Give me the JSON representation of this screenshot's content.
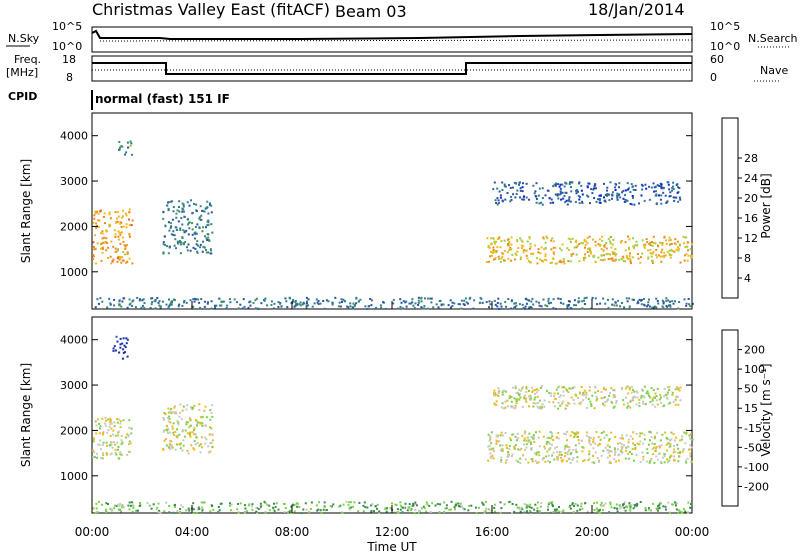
{
  "header": {
    "title": "Christmas Valley East (fitACF)",
    "beam": "Beam 03",
    "date": "18/Jan/2014"
  },
  "params": {
    "nsky_label": "N.Sky",
    "nsearch_label": "N.Search",
    "freq_label_1": "Freq.",
    "freq_label_2": "[MHz]",
    "nave_label": "Nave",
    "cpid_label": "CPID",
    "cpid_value": "normal (fast) 151 IF",
    "noise_ticks": [
      "10^5",
      "10^0"
    ],
    "freq_ticks": [
      "18",
      "8"
    ],
    "nave_ticks": [
      "60",
      "0"
    ]
  },
  "axes": {
    "ylabel": "Slant Range [km]",
    "xlabel": "Time UT",
    "y_ticks": [
      "1000",
      "2000",
      "3000",
      "4000"
    ],
    "x_ticks": [
      "00:00",
      "04:00",
      "08:00",
      "12:00",
      "16:00",
      "20:00",
      "00:00"
    ]
  },
  "power_colorbar": {
    "label": "Power [dB]",
    "ticks": [
      "4",
      "8",
      "12",
      "16",
      "20",
      "24",
      "28"
    ],
    "colors": [
      "#0a1fe6",
      "#2a4fa6",
      "#2f7a8f",
      "#3f8f68",
      "#9ad044",
      "#f2b81f",
      "#f08a18",
      "#ef5a14",
      "#e81e10"
    ]
  },
  "velocity_colorbar": {
    "label": "Velocity [m s⁻¹]",
    "ticks": [
      "200",
      "100",
      "50",
      "15",
      "-15",
      "-50",
      "-100",
      "-200"
    ],
    "colors": [
      "#1a2ea8",
      "#2e5fa8",
      "#3a8a4f",
      "#7bd14a",
      "#c8c8c0",
      "#f2b81f",
      "#f08a18",
      "#ef4a12",
      "#e01010"
    ]
  },
  "chart_data": [
    {
      "type": "heatmap",
      "title": "Power",
      "xlabel": "Time UT",
      "ylabel": "Slant Range [km]",
      "xlim": [
        0,
        24
      ],
      "ylim": [
        180,
        4500
      ],
      "colorbar_range": [
        0,
        30
      ],
      "features": [
        {
          "t0": 0.0,
          "t1": 1.6,
          "r0": 1200,
          "r1": 2400,
          "v": 20
        },
        {
          "t0": 1.0,
          "t1": 1.6,
          "r0": 3600,
          "r1": 3900,
          "v": 10
        },
        {
          "t0": 2.8,
          "t1": 4.8,
          "r0": 1400,
          "r1": 2600,
          "v": 9
        },
        {
          "t0": 15.7,
          "t1": 24.0,
          "r0": 1200,
          "r1": 1800,
          "v": 18
        },
        {
          "t0": 16.0,
          "t1": 23.5,
          "r0": 2500,
          "r1": 3000,
          "v": 6
        },
        {
          "t0": 0.0,
          "t1": 24.0,
          "r0": 200,
          "r1": 450,
          "v": 8
        }
      ]
    },
    {
      "type": "heatmap",
      "title": "Velocity",
      "xlabel": "Time UT",
      "ylabel": "Slant Range [km]",
      "xlim": [
        0,
        24
      ],
      "ylim": [
        180,
        4500
      ],
      "colorbar_range": [
        -200,
        200
      ],
      "features": [
        {
          "t0": 0.0,
          "t1": 1.6,
          "r0": 1400,
          "r1": 2300,
          "v": 0
        },
        {
          "t0": 0.8,
          "t1": 1.4,
          "r0": 3600,
          "r1": 4100,
          "v": -200
        },
        {
          "t0": 2.8,
          "t1": 4.8,
          "r0": 1500,
          "r1": 2600,
          "v": 0
        },
        {
          "t0": 15.8,
          "t1": 24.0,
          "r0": 1300,
          "r1": 2000,
          "v": 0
        },
        {
          "t0": 16.0,
          "t1": 23.5,
          "r0": 2500,
          "r1": 3000,
          "v": 0
        },
        {
          "t0": 0.0,
          "t1": 24.0,
          "r0": 200,
          "r1": 450,
          "v": -60
        }
      ]
    }
  ]
}
